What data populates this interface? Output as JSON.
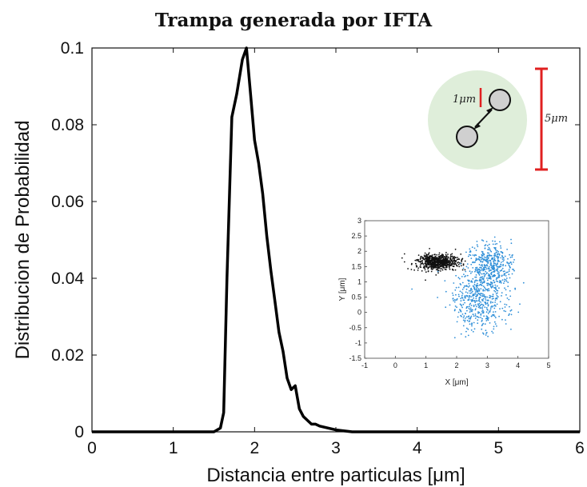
{
  "chart_data": [
    {
      "type": "line",
      "title": "Trampa generada por IFTA",
      "xlabel": "Distancia entre particulas [μm]",
      "ylabel": "Distribucion de Probabilidad",
      "xlim": [
        0,
        6
      ],
      "ylim": [
        0,
        0.1
      ],
      "xticks": [
        "0",
        "1",
        "2",
        "3",
        "4",
        "5",
        "6"
      ],
      "yticks": [
        "0",
        "0.02",
        "0.04",
        "0.06",
        "0.08",
        "0.1"
      ],
      "grid": false,
      "color": "#000000",
      "x": [
        0,
        1.5,
        1.58,
        1.62,
        1.66,
        1.72,
        1.78,
        1.85,
        1.9,
        1.95,
        2.0,
        2.05,
        2.1,
        2.15,
        2.2,
        2.25,
        2.3,
        2.35,
        2.4,
        2.45,
        2.5,
        2.55,
        2.6,
        2.65,
        2.7,
        2.75,
        2.8,
        2.9,
        3.0,
        3.2,
        6.0
      ],
      "y": [
        0,
        0,
        0.001,
        0.005,
        0.04,
        0.082,
        0.088,
        0.097,
        0.1,
        0.088,
        0.076,
        0.07,
        0.062,
        0.051,
        0.042,
        0.034,
        0.026,
        0.021,
        0.014,
        0.011,
        0.012,
        0.006,
        0.004,
        0.003,
        0.002,
        0.002,
        0.0015,
        0.001,
        0.0005,
        0,
        0
      ]
    },
    {
      "type": "scatter",
      "xlabel": "X [μm]",
      "ylabel": "Y [μm]",
      "xlim": [
        -1,
        5
      ],
      "ylim": [
        -1.5,
        3
      ],
      "xticks": [
        "-1",
        "0",
        "1",
        "2",
        "3",
        "4",
        "5"
      ],
      "yticks": [
        "-1.5",
        "-1",
        "-0.5",
        "0",
        "0.5",
        "1",
        "1.5",
        "2",
        "2.5",
        "3"
      ],
      "series": [
        {
          "color": "#111111",
          "center": [
            1.4,
            1.65
          ],
          "spread": [
            0.75,
            0.28
          ]
        },
        {
          "color": "#2f8fd8",
          "center": [
            2.7,
            0.4
          ],
          "spread": [
            1.0,
            1.05
          ]
        }
      ]
    }
  ],
  "annotation": {
    "diameter_label": "1μm",
    "trap_size_label": "5μm",
    "colors": {
      "trap": "#dfeeda",
      "particle": "#d0d0d0",
      "scale_bar": "#e02020"
    }
  }
}
